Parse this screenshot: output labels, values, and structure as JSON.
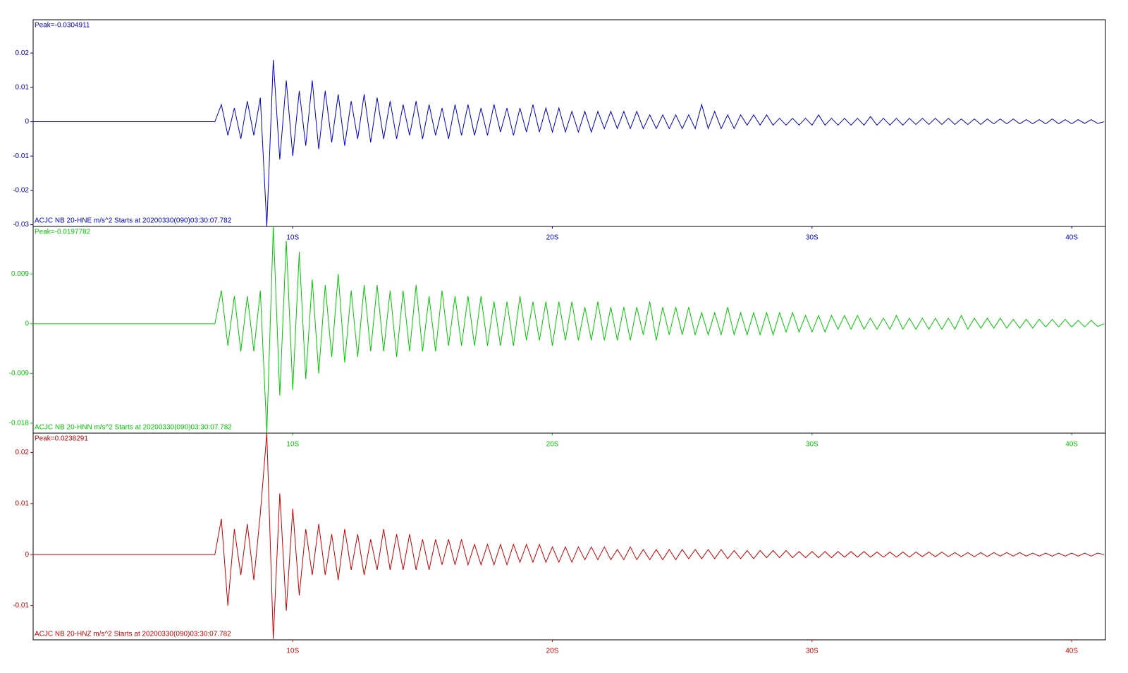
{
  "chart_data": [
    {
      "type": "line",
      "title": "ACJC NB 20-HNE  m/s^2 Starts at 20200330(090)03:30:07.782",
      "annotation": "Peak=-0.0304911",
      "color": "#0000c8",
      "xlim": [
        0,
        41.3
      ],
      "xticks": [
        {
          "value": 10,
          "label": "10S"
        },
        {
          "value": 20,
          "label": "20S"
        },
        {
          "value": 30,
          "label": "30S"
        },
        {
          "value": 40,
          "label": "40S"
        }
      ],
      "ylim": [
        -0.0305,
        0.0297
      ],
      "yticks": [
        0.02,
        0.01,
        0,
        -0.01,
        -0.02,
        -0.03
      ],
      "x": [
        0,
        7,
        7.25,
        7.5,
        7.75,
        8,
        8.25,
        8.5,
        8.75,
        9,
        9.25,
        9.5,
        9.75,
        10,
        10.25,
        10.5,
        10.75,
        11,
        11.25,
        11.5,
        11.75,
        12,
        12.25,
        12.5,
        12.75,
        13,
        13.25,
        13.5,
        13.75,
        14,
        14.25,
        14.5,
        14.75,
        15,
        15.25,
        15.5,
        15.75,
        16,
        16.25,
        16.5,
        16.75,
        17,
        17.25,
        17.5,
        17.75,
        18,
        18.25,
        18.5,
        18.75,
        19,
        19.25,
        19.5,
        19.75,
        20,
        20.25,
        20.5,
        20.75,
        21,
        21.25,
        21.5,
        21.75,
        22,
        22.25,
        22.5,
        22.75,
        23,
        23.25,
        23.5,
        23.75,
        24,
        24.25,
        24.5,
        24.75,
        25,
        25.25,
        25.5,
        25.75,
        26,
        26.25,
        26.5,
        26.75,
        27,
        27.25,
        27.5,
        27.75,
        28,
        28.25,
        28.5,
        28.75,
        29,
        29.25,
        29.5,
        29.75,
        30,
        30.25,
        30.5,
        30.75,
        31,
        31.25,
        31.5,
        31.75,
        32,
        32.25,
        32.5,
        32.75,
        33,
        33.25,
        33.5,
        33.75,
        34,
        34.25,
        34.5,
        34.75,
        35,
        35.25,
        35.5,
        35.75,
        36,
        36.25,
        36.5,
        36.75,
        37,
        37.25,
        37.5,
        37.75,
        38,
        38.25,
        38.5,
        38.75,
        39,
        39.25,
        39.5,
        39.75,
        40,
        40.25,
        40.5,
        40.75,
        41,
        41.25
      ],
      "values": [
        0,
        0,
        0.005,
        -0.004,
        0.004,
        -0.005,
        0.006,
        -0.004,
        0.007,
        -0.0304911,
        0.018,
        -0.011,
        0.012,
        -0.01,
        0.009,
        -0.007,
        0.012,
        -0.008,
        0.009,
        -0.006,
        0.008,
        -0.007,
        0.006,
        -0.005,
        0.008,
        -0.006,
        0.007,
        -0.005,
        0.006,
        -0.005,
        0.005,
        -0.004,
        0.006,
        -0.005,
        0.005,
        -0.004,
        0.004,
        -0.005,
        0.005,
        -0.004,
        0.005,
        -0.004,
        0.004,
        -0.004,
        0.005,
        -0.003,
        0.004,
        -0.004,
        0.004,
        -0.003,
        0.005,
        -0.003,
        0.004,
        -0.003,
        0.004,
        -0.003,
        0.003,
        -0.003,
        0.003,
        -0.003,
        0.003,
        -0.002,
        0.003,
        -0.002,
        0.003,
        -0.002,
        0.003,
        -0.002,
        0.002,
        -0.002,
        0.002,
        -0.002,
        0.002,
        -0.002,
        0.002,
        -0.002,
        0.005,
        -0.002,
        0.003,
        -0.002,
        0.002,
        -0.002,
        0.002,
        -0.001,
        0.002,
        -0.001,
        0.002,
        -0.001,
        0.001,
        -0.001,
        0.001,
        -0.001,
        0.001,
        -0.001,
        0.002,
        -0.001,
        0.001,
        -0.001,
        0.001,
        -0.001,
        0.001,
        -0.001,
        0.0015,
        -0.001,
        0.001,
        -0.001,
        0.001,
        -0.001,
        0.001,
        -0.0008,
        0.001,
        -0.0008,
        0.001,
        -0.0008,
        0.001,
        -0.0008,
        0.0008,
        -0.0008,
        0.0008,
        -0.0008,
        0.0008,
        -0.0006,
        0.0008,
        -0.0006,
        0.0008,
        -0.0006,
        0.0006,
        -0.0006,
        0.0006,
        -0.0006,
        0.0008,
        -0.0006,
        0.0006,
        -0.0006,
        0.0006,
        -0.0005,
        0.0006,
        -0.0005,
        0
      ]
    },
    {
      "type": "line",
      "title": "ACJC NB 20-HNN  m/s^2 Starts at 20200330(090)03:30:07.782",
      "annotation": "Peak=-0.0197782",
      "color": "#00c800",
      "xlim": [
        0,
        41.3
      ],
      "xticks": [
        {
          "value": 10,
          "label": "10S"
        },
        {
          "value": 20,
          "label": "20S"
        },
        {
          "value": 30,
          "label": "30S"
        },
        {
          "value": 40,
          "label": "40S"
        }
      ],
      "ylim": [
        -0.0198,
        0.0176
      ],
      "yticks": [
        0.009,
        0,
        -0.009,
        -0.018
      ],
      "x": [
        0,
        7,
        7.25,
        7.5,
        7.75,
        8,
        8.25,
        8.5,
        8.75,
        9,
        9.25,
        9.5,
        9.75,
        10,
        10.25,
        10.5,
        10.75,
        11,
        11.25,
        11.5,
        11.75,
        12,
        12.25,
        12.5,
        12.75,
        13,
        13.25,
        13.5,
        13.75,
        14,
        14.25,
        14.5,
        14.75,
        15,
        15.25,
        15.5,
        15.75,
        16,
        16.25,
        16.5,
        16.75,
        17,
        17.25,
        17.5,
        17.75,
        18,
        18.25,
        18.5,
        18.75,
        19,
        19.25,
        19.5,
        19.75,
        20,
        20.25,
        20.5,
        20.75,
        21,
        21.25,
        21.5,
        21.75,
        22,
        22.25,
        22.5,
        22.75,
        23,
        23.25,
        23.5,
        23.75,
        24,
        24.25,
        24.5,
        24.75,
        25,
        25.25,
        25.5,
        25.75,
        26,
        26.25,
        26.5,
        26.75,
        27,
        27.25,
        27.5,
        27.75,
        28,
        28.25,
        28.5,
        28.75,
        29,
        29.25,
        29.5,
        29.75,
        30,
        30.25,
        30.5,
        30.75,
        31,
        31.25,
        31.5,
        31.75,
        32,
        32.25,
        32.5,
        32.75,
        33,
        33.25,
        33.5,
        33.75,
        34,
        34.25,
        34.5,
        34.75,
        35,
        35.25,
        35.5,
        35.75,
        36,
        36.25,
        36.5,
        36.75,
        37,
        37.25,
        37.5,
        37.75,
        38,
        38.25,
        38.5,
        38.75,
        39,
        39.25,
        39.5,
        39.75,
        40,
        40.25,
        40.5,
        40.75,
        41,
        41.25
      ],
      "values": [
        0,
        0,
        0.006,
        -0.004,
        0.005,
        -0.005,
        0.005,
        -0.005,
        0.006,
        -0.0197782,
        0.0176,
        -0.013,
        0.015,
        -0.012,
        0.013,
        -0.01,
        0.008,
        -0.009,
        0.007,
        -0.006,
        0.009,
        -0.007,
        0.006,
        -0.006,
        0.007,
        -0.005,
        0.007,
        -0.005,
        0.006,
        -0.006,
        0.006,
        -0.005,
        0.007,
        -0.005,
        0.005,
        -0.005,
        0.006,
        -0.004,
        0.005,
        -0.004,
        0.005,
        -0.004,
        0.005,
        -0.004,
        0.004,
        -0.004,
        0.004,
        -0.004,
        0.005,
        -0.003,
        0.004,
        -0.003,
        0.004,
        -0.004,
        0.004,
        -0.003,
        0.004,
        -0.003,
        0.003,
        -0.003,
        0.004,
        -0.003,
        0.003,
        -0.003,
        0.003,
        -0.003,
        0.003,
        -0.002,
        0.004,
        -0.003,
        0.003,
        -0.002,
        0.003,
        -0.002,
        0.003,
        -0.002,
        0.002,
        -0.002,
        0.002,
        -0.002,
        0.003,
        -0.002,
        0.002,
        -0.002,
        0.002,
        -0.002,
        0.002,
        -0.002,
        0.002,
        -0.0015,
        0.002,
        -0.0015,
        0.0015,
        -0.0015,
        0.0015,
        -0.0015,
        0.0015,
        -0.001,
        0.0015,
        -0.001,
        0.0015,
        -0.001,
        0.001,
        -0.001,
        0.001,
        -0.001,
        0.0015,
        -0.001,
        0.001,
        -0.001,
        0.001,
        -0.001,
        0.001,
        -0.001,
        0.001,
        -0.001,
        0.0015,
        -0.001,
        0.001,
        -0.0008,
        0.001,
        -0.0008,
        0.001,
        -0.0008,
        0.0008,
        -0.0008,
        0.0008,
        -0.0008,
        0.0008,
        -0.0006,
        0.0008,
        -0.0006,
        0.0008,
        -0.0006,
        0.0006,
        -0.0006,
        0.0006,
        -0.0005,
        0
      ]
    },
    {
      "type": "line",
      "title": "ACJC NB 20-HNZ  m/s^2 Starts at 20200330(090)03:30:07.782",
      "annotation": "Peak=0.0238291",
      "color": "#c80000",
      "xlim": [
        0,
        41.3
      ],
      "xticks": [
        {
          "value": 10,
          "label": "10S"
        },
        {
          "value": 20,
          "label": "20S"
        },
        {
          "value": 30,
          "label": "30S"
        },
        {
          "value": 40,
          "label": "40S"
        }
      ],
      "ylim": [
        -0.0167,
        0.0238
      ],
      "yticks": [
        0.02,
        0.01,
        0,
        -0.01
      ],
      "x": [
        0,
        7,
        7.25,
        7.5,
        7.75,
        8,
        8.25,
        8.5,
        8.75,
        9,
        9.25,
        9.5,
        9.75,
        10,
        10.25,
        10.5,
        10.75,
        11,
        11.25,
        11.5,
        11.75,
        12,
        12.25,
        12.5,
        12.75,
        13,
        13.25,
        13.5,
        13.75,
        14,
        14.25,
        14.5,
        14.75,
        15,
        15.25,
        15.5,
        15.75,
        16,
        16.25,
        16.5,
        16.75,
        17,
        17.25,
        17.5,
        17.75,
        18,
        18.25,
        18.5,
        18.75,
        19,
        19.25,
        19.5,
        19.75,
        20,
        20.25,
        20.5,
        20.75,
        21,
        21.25,
        21.5,
        21.75,
        22,
        22.25,
        22.5,
        22.75,
        23,
        23.25,
        23.5,
        23.75,
        24,
        24.25,
        24.5,
        24.75,
        25,
        25.25,
        25.5,
        25.75,
        26,
        26.25,
        26.5,
        26.75,
        27,
        27.25,
        27.5,
        27.75,
        28,
        28.25,
        28.5,
        28.75,
        29,
        29.25,
        29.5,
        29.75,
        30,
        30.25,
        30.5,
        30.75,
        31,
        31.25,
        31.5,
        31.75,
        32,
        32.25,
        32.5,
        32.75,
        33,
        33.25,
        33.5,
        33.75,
        34,
        34.25,
        34.5,
        34.75,
        35,
        35.25,
        35.5,
        35.75,
        36,
        36.25,
        36.5,
        36.75,
        37,
        37.25,
        37.5,
        37.75,
        38,
        38.25,
        38.5,
        38.75,
        39,
        39.25,
        39.5,
        39.75,
        40,
        40.25,
        40.5,
        40.75,
        41,
        41.25
      ],
      "values": [
        0,
        0,
        0.007,
        -0.01,
        0.005,
        -0.004,
        0.006,
        -0.005,
        0.008,
        0.0238291,
        -0.0165,
        0.012,
        -0.011,
        0.009,
        -0.008,
        0.005,
        -0.004,
        0.006,
        -0.004,
        0.004,
        -0.005,
        0.005,
        -0.003,
        0.004,
        -0.004,
        0.003,
        -0.003,
        0.005,
        -0.003,
        0.004,
        -0.003,
        0.004,
        -0.003,
        0.003,
        -0.003,
        0.003,
        -0.002,
        0.003,
        -0.002,
        0.003,
        -0.002,
        0.002,
        -0.002,
        0.002,
        -0.002,
        0.002,
        -0.002,
        0.002,
        -0.0015,
        0.002,
        -0.0015,
        0.002,
        -0.0015,
        0.0015,
        -0.0015,
        0.0015,
        -0.0015,
        0.0015,
        -0.001,
        0.0015,
        -0.001,
        0.0015,
        -0.001,
        0.001,
        -0.001,
        0.0015,
        -0.001,
        0.001,
        -0.001,
        0.001,
        -0.001,
        0.001,
        -0.001,
        0.001,
        -0.0008,
        0.001,
        -0.0008,
        0.001,
        -0.0008,
        0.001,
        -0.0008,
        0.0008,
        -0.0008,
        0.0008,
        -0.0008,
        0.0008,
        -0.0006,
        0.0008,
        -0.0006,
        0.0008,
        -0.0006,
        0.0006,
        -0.0006,
        0.0006,
        -0.0006,
        0.0006,
        -0.0006,
        0.0006,
        -0.0005,
        0.0006,
        -0.0005,
        0.0006,
        -0.0005,
        0.0005,
        -0.0005,
        0.0005,
        -0.0005,
        0.0005,
        -0.0005,
        0.0005,
        -0.0004,
        0.0005,
        -0.0004,
        0.0005,
        -0.0004,
        0.0004,
        -0.0004,
        0.0004,
        -0.0004,
        0.0004,
        -0.0004,
        0.0004,
        -0.0003,
        0.0004,
        -0.0003,
        0.0004,
        -0.0003,
        0.0003,
        -0.0003,
        0.0003,
        -0.0003,
        0.0003,
        -0.0003,
        0.0003,
        -0.0003,
        0.0003,
        -0.0003,
        0.0003,
        0
      ]
    }
  ]
}
